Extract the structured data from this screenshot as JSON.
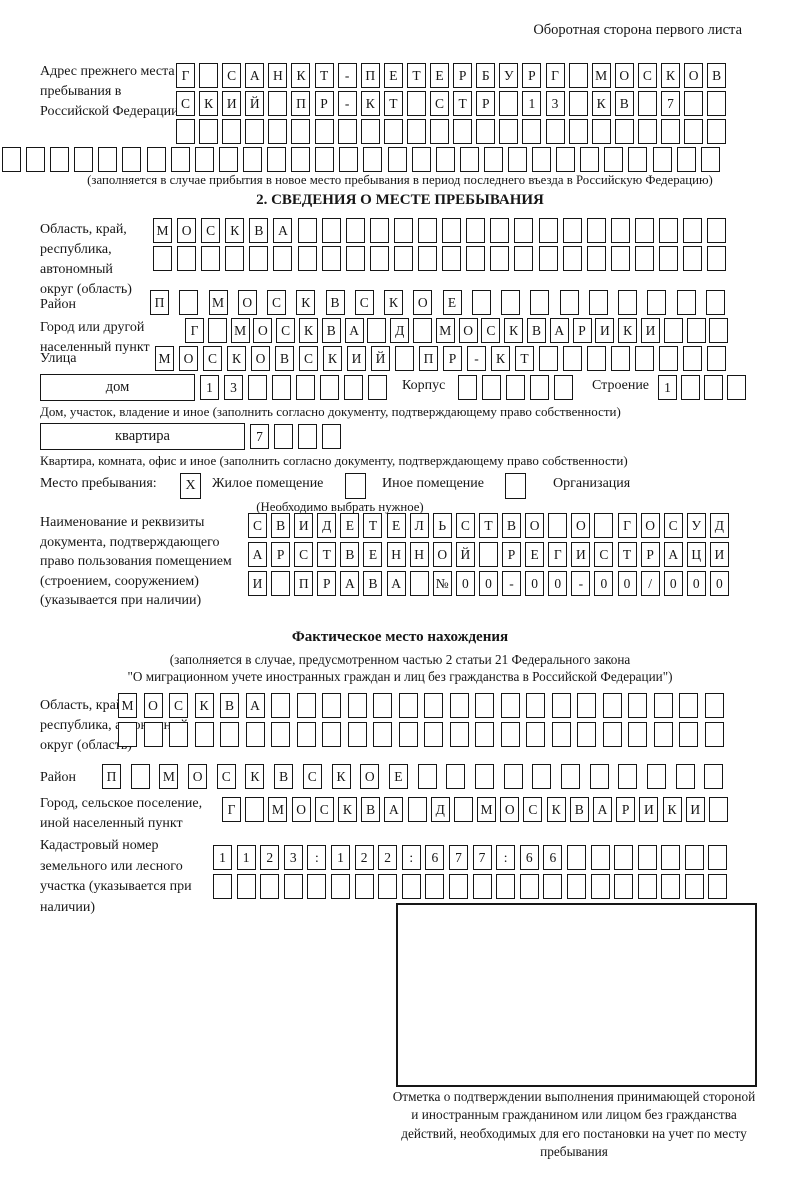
{
  "colors": {
    "ink": "#161616",
    "paper": "#ffffff"
  },
  "header": {
    "note": "Оборотная сторона первого листа"
  },
  "prev_address": {
    "label": "Адрес прежнего места пребывания в Российской Федерации",
    "rows": [
      {
        "chars": "Г САНКТ-ПЕТЕРБУРГ МОСКОВ",
        "count": 24
      },
      {
        "chars": "СКИЙ ПР-КТ СТР 13 КВ 7",
        "count": 24
      },
      {
        "chars": "",
        "count": 24
      },
      {
        "chars": "",
        "count": 30
      }
    ],
    "note": "(заполняется в случае прибытия в новое место пребывания в период последнего въезда в Российскую Федерацию)"
  },
  "section2": {
    "title": "2. СВЕДЕНИЯ О МЕСТЕ ПРЕБЫВАНИЯ",
    "region": {
      "label": "Область, край, республика, автономный округ (область)",
      "rows": [
        {
          "chars": "МОСКВА",
          "count": 24
        },
        {
          "chars": "",
          "count": 24
        }
      ]
    },
    "district": {
      "label": "Район",
      "row": {
        "chars": "П МОСКВСКОЕ",
        "count": 20
      }
    },
    "city": {
      "label": "Город или другой населенный пункт",
      "row": {
        "chars": "Г МОСКВА Д МОСКВАРИКИ",
        "count": 24
      }
    },
    "street": {
      "label": "Улица",
      "row": {
        "chars": "МОСКОВСКИЙ ПР-КТ",
        "count": 24
      }
    },
    "house": {
      "box_label": "дом",
      "row": {
        "chars": "13",
        "count": 8
      },
      "korpus_label": "Корпус",
      "korpus_row": {
        "chars": "",
        "count": 5
      },
      "stroenie_label": "Строение",
      "stroenie_row": {
        "chars": "1",
        "count": 4
      },
      "caption": "Дом, участок, владение и иное (заполнить согласно документу, подтверждающему право собственности)"
    },
    "apartment": {
      "box_label": "квартира",
      "row": {
        "chars": "7",
        "count": 4
      },
      "caption": "Квартира, комната, офис и иное (заполнить согласно документу, подтверждающему право собственности)"
    },
    "stay": {
      "label": "Место пребывания:",
      "checked_value": "X",
      "options": [
        "Жилое помещение",
        "Иное помещение",
        "Организация"
      ],
      "note": "(Необходимо выбрать нужное)"
    },
    "doc": {
      "label": "Наименование и реквизиты документа, подтверждающего право пользования помещением (строением, сооружением) (указывается при наличии)",
      "rows": [
        {
          "chars": "СВИДЕТЕЛЬСТВО О ГОСУД",
          "count": 21
        },
        {
          "chars": "АРСТВЕННОЙ РЕГИСТРАЦИ",
          "count": 21
        },
        {
          "chars": "И ПРАВА №00-00-00/000",
          "count": 21
        }
      ]
    }
  },
  "actual_location": {
    "title": "Фактическое место нахождения",
    "note1": "(заполняется в случае, предусмотренном частью 2 статьи 21 Федерального закона",
    "note2": "\"О миграционном учете иностранных граждан и лиц без гражданства в Российской Федерации\")",
    "region": {
      "label": "Область, край, республика, автономный округ (область)",
      "rows": [
        {
          "chars": "МОСКВА",
          "count": 24
        },
        {
          "chars": "",
          "count": 24
        }
      ]
    },
    "district": {
      "label": "Район",
      "row": {
        "chars": "П МОСКВСКОЕ",
        "count": 22
      }
    },
    "city": {
      "label": "Город, сельское поселение, иной населенный пункт",
      "row": {
        "chars": "Г МОСКВА Д МОСКВАРИКИ",
        "count": 22
      }
    },
    "cadastre": {
      "label": "Кадастровый номер земельного или лесного участка (указывается при наличии)",
      "rows": [
        {
          "chars": "1123:122:677:66",
          "count": 22
        },
        {
          "chars": "",
          "count": 22
        }
      ]
    }
  },
  "stamp": {
    "caption": "Отметка о подтверждении выполнения принимающей стороной и иностранным гражданином или лицом без гражданства действий, необходимых для его постановки на учет по месту пребывания"
  }
}
